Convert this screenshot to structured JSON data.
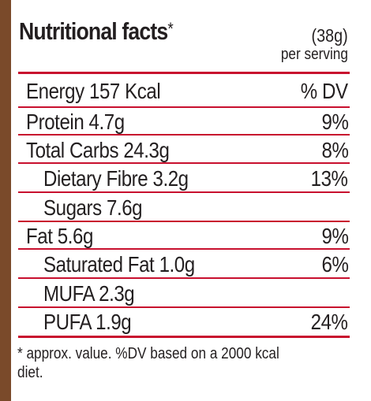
{
  "header": {
    "title": "Nutritional facts",
    "title_mark": "*",
    "serving_size": "(38g)",
    "serving_unit": "per serving"
  },
  "table": {
    "header": {
      "label": "Energy 157 Kcal",
      "dv_label": "% DV"
    },
    "rows": [
      {
        "label": "Protein 4.7g",
        "dv": "9%"
      },
      {
        "label": "Total Carbs 24.3g",
        "dv": "8%"
      },
      {
        "label": "Dietary Fibre 3.2g",
        "dv": "13%"
      },
      {
        "label": "Sugars 7.6g",
        "dv": ""
      },
      {
        "label": "Fat 5.6g",
        "dv": "9%"
      },
      {
        "label": "Saturated Fat 1.0g",
        "dv": "6%"
      },
      {
        "label": "MUFA 2.3g",
        "dv": ""
      },
      {
        "label": "PUFA 1.9g",
        "dv": "24%"
      }
    ]
  },
  "footnote": "* approx. value. %DV based on a 2000 kcal diet.",
  "colors": {
    "frame": "#7a4a2a",
    "rule": "#c8102e",
    "text": "#231f20",
    "background": "#ffffff"
  }
}
